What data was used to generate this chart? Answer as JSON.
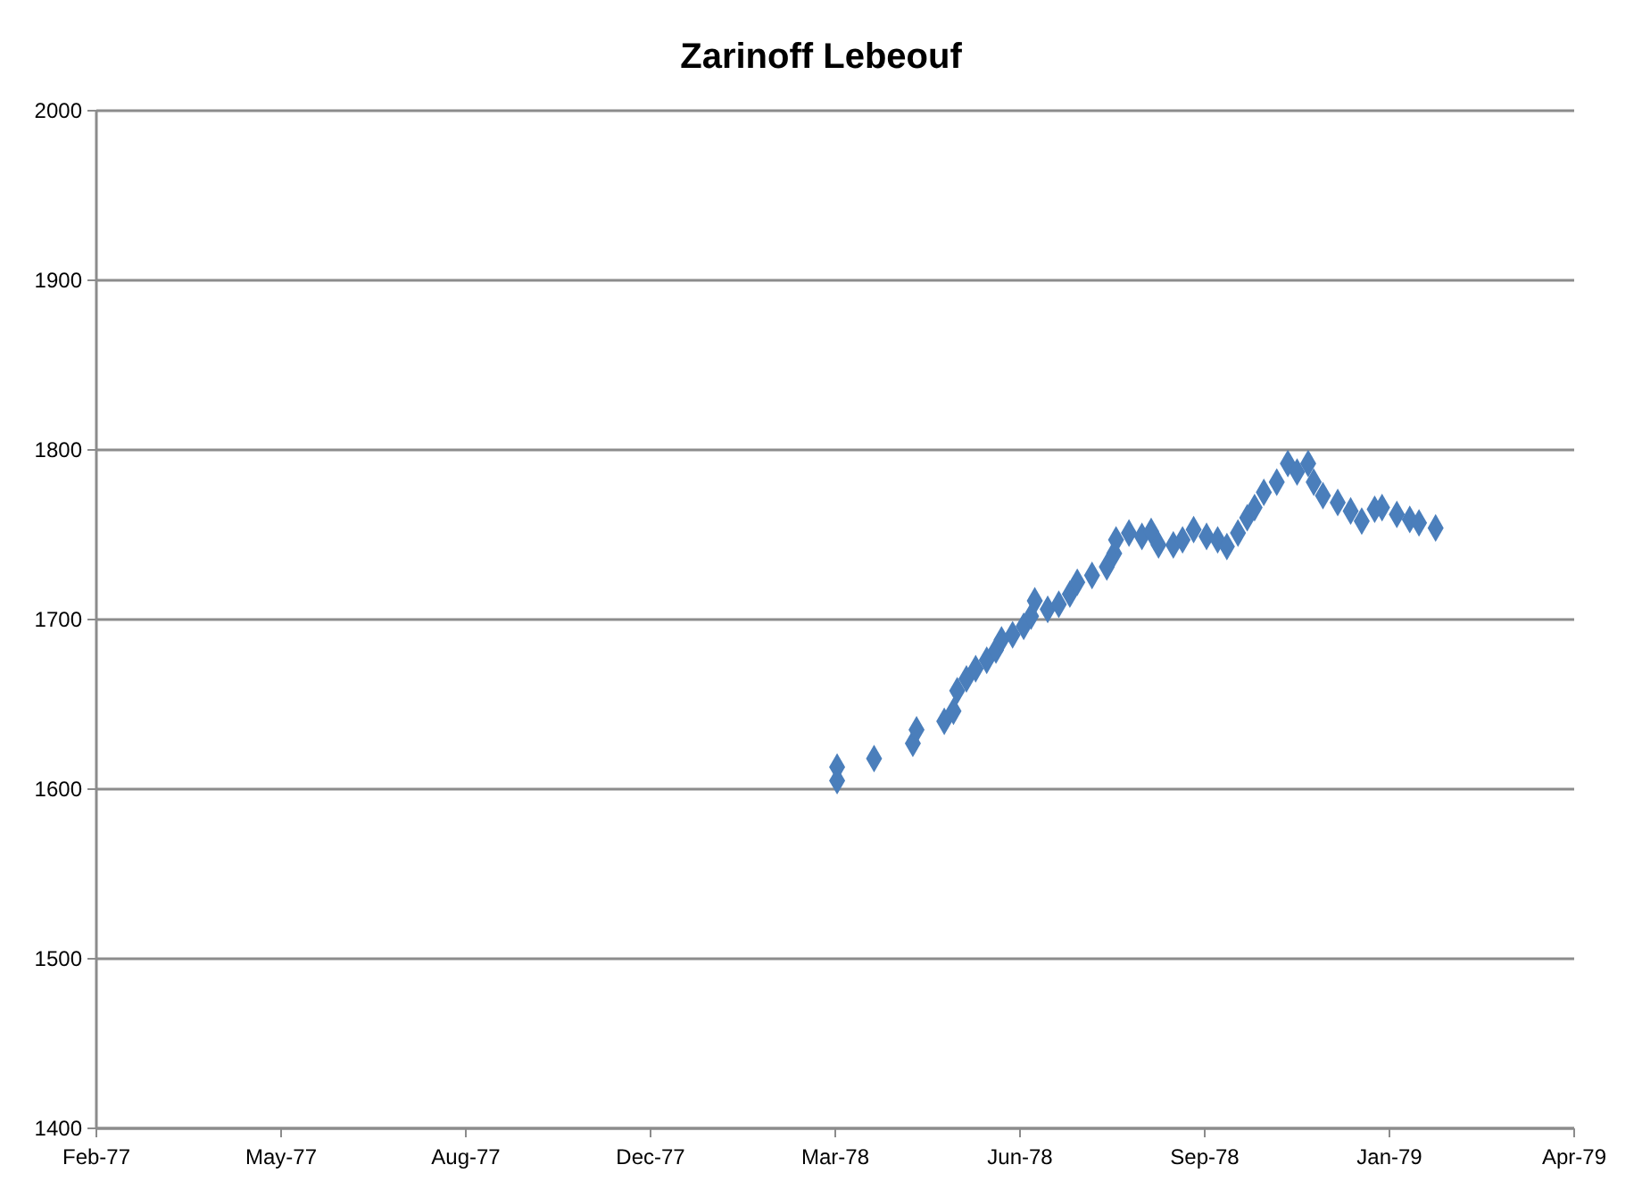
{
  "chart_data": {
    "type": "scatter",
    "title": "Zarinoff Lebeouf",
    "marker": "diamond",
    "grid": "y",
    "x": [
      "1978-03-15",
      "1978-03-15",
      "1978-04-04",
      "1978-04-25",
      "1978-04-27",
      "1978-05-12",
      "1978-05-17",
      "1978-05-19",
      "1978-05-24",
      "1978-05-29",
      "1978-06-04",
      "1978-06-09",
      "1978-06-12",
      "1978-06-18",
      "1978-06-24",
      "1978-06-28",
      "1978-06-30",
      "1978-07-07",
      "1978-07-13",
      "1978-07-19",
      "1978-07-23",
      "1978-07-31",
      "1978-08-08",
      "1978-08-12",
      "1978-08-13",
      "1978-08-20",
      "1978-08-27",
      "1978-09-01",
      "1978-09-05",
      "1978-09-13",
      "1978-09-18",
      "1978-09-24",
      "1978-10-01",
      "1978-10-07",
      "1978-10-12",
      "1978-10-18",
      "1978-10-23",
      "1978-10-27",
      "1978-11-01",
      "1978-11-08",
      "1978-11-14",
      "1978-11-19",
      "1978-11-25",
      "1978-11-28",
      "1978-12-03",
      "1978-12-11",
      "1978-12-18",
      "1978-12-24",
      "1978-12-31",
      "1979-01-04",
      "1979-01-12",
      "1979-01-19",
      "1979-01-24",
      "1979-02-02"
    ],
    "series": [
      {
        "color": "#4a7ebb",
        "values": [
          1613,
          1605,
          1618,
          1627,
          1635,
          1640,
          1646,
          1658,
          1665,
          1671,
          1676,
          1682,
          1688,
          1691,
          1696,
          1702,
          1711,
          1706,
          1709,
          1715,
          1722,
          1726,
          1731,
          1739,
          1747,
          1751,
          1749,
          1752,
          1744,
          1744,
          1747,
          1753,
          1749,
          1747,
          1743,
          1751,
          1760,
          1766,
          1775,
          1781,
          1792,
          1787,
          1792,
          1781,
          1773,
          1769,
          1764,
          1758,
          1765,
          1766,
          1762,
          1759,
          1757,
          1754
        ]
      }
    ],
    "xlim": [
      "1977-02-07",
      "1979-04-18"
    ],
    "xticks": [
      {
        "value": "1977-02-07",
        "label": "Feb-77"
      },
      {
        "value": "1977-05-18",
        "label": "May-77"
      },
      {
        "value": "1977-08-26",
        "label": "Aug-77"
      },
      {
        "value": "1977-12-04",
        "label": "Dec-77"
      },
      {
        "value": "1978-03-14",
        "label": "Mar-78"
      },
      {
        "value": "1978-06-22",
        "label": "Jun-78"
      },
      {
        "value": "1978-09-30",
        "label": "Sep-78"
      },
      {
        "value": "1979-01-08",
        "label": "Jan-79"
      },
      {
        "value": "1979-04-18",
        "label": "Apr-79"
      }
    ],
    "ylim": [
      1400,
      2000
    ],
    "yticks": [
      1400,
      1500,
      1600,
      1700,
      1800,
      1900,
      2000
    ]
  }
}
